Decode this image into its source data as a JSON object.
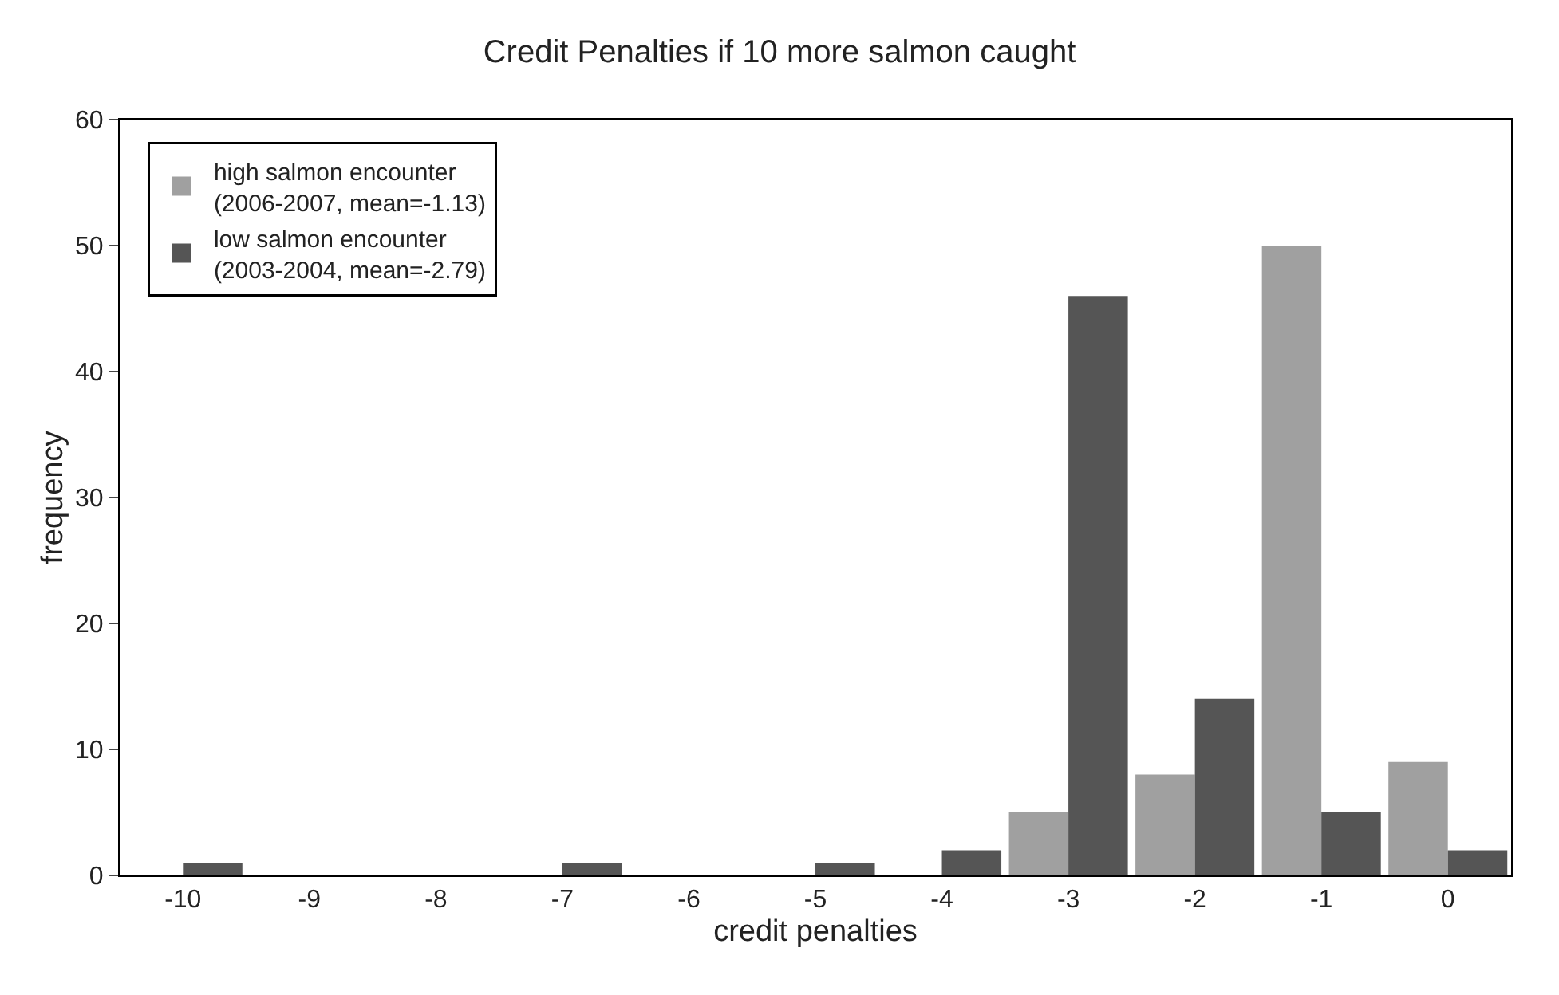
{
  "chart_data": {
    "type": "bar",
    "title": "Credit Penalties if 10 more salmon caught",
    "xlabel": "credit penalties",
    "ylabel": "frequency",
    "categories": [
      "-10",
      "-9",
      "-8",
      "-7",
      "-6",
      "-5",
      "-4",
      "-3",
      "-2",
      "-1",
      "0"
    ],
    "series": [
      {
        "name": "high salmon encounter\n(2006-2007, mean=-1.13)",
        "color": "#a0a0a0",
        "values": [
          0,
          0,
          0,
          0,
          0,
          0,
          0,
          5,
          8,
          50,
          9
        ]
      },
      {
        "name": "low salmon encounter\n(2003-2004, mean=-2.79)",
        "color": "#555555",
        "values": [
          1,
          0,
          0,
          1,
          0,
          1,
          2,
          46,
          14,
          5,
          2
        ]
      }
    ],
    "ylim": [
      0,
      60
    ],
    "yticks": [
      0,
      10,
      20,
      30,
      40,
      50,
      60
    ],
    "legend": "top left"
  }
}
